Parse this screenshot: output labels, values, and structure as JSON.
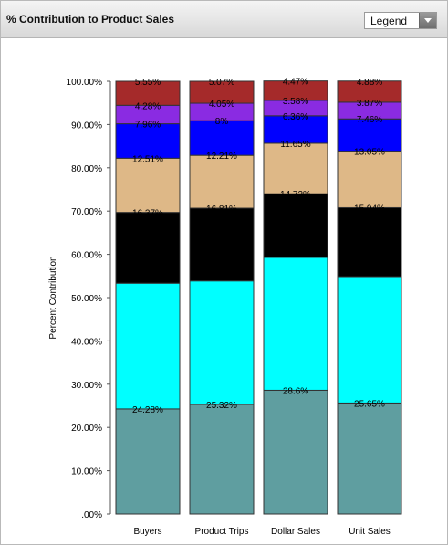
{
  "header": {
    "title": "% Contribution to Product Sales",
    "legend_label": "Legend"
  },
  "icons": {
    "legend_dropdown": "chevron-down-icon"
  },
  "chart_data": {
    "type": "bar",
    "stacked": true,
    "title": "% Contribution to Product Sales",
    "ylabel": "Percent Contribution",
    "xlabel": "",
    "ylim": [
      0,
      100
    ],
    "yticks": [
      ".00%",
      "10.00%",
      "20.00%",
      "30.00%",
      "40.00%",
      "50.00%",
      "60.00%",
      "70.00%",
      "80.00%",
      "90.00%",
      "100.00%"
    ],
    "categories": [
      "Buyers",
      "Product Trips",
      "Dollar Sales",
      "Unit Sales"
    ],
    "series": [
      {
        "color": "#5f9ea0",
        "values": [
          24.28,
          25.32,
          28.6,
          25.65
        ],
        "labels": [
          "24.28%",
          "25.32%",
          "28.6%",
          "25.65%"
        ]
      },
      {
        "color": "#00ffff",
        "values": [
          29.05,
          28.54,
          30.69,
          29.2
        ],
        "labels": [
          "",
          "",
          "",
          ""
        ]
      },
      {
        "color": "#000000",
        "values": [
          16.37,
          16.81,
          14.72,
          15.94
        ],
        "labels": [
          "16.37%",
          "16.81%",
          "14.72%",
          "15.94%"
        ]
      },
      {
        "color": "#deb887",
        "values": [
          12.51,
          12.21,
          11.65,
          13.05
        ],
        "labels": [
          "12.51%",
          "12.21%",
          "11.65%",
          "13.05%"
        ]
      },
      {
        "color": "#0000ff",
        "values": [
          7.96,
          8.0,
          6.36,
          7.46
        ],
        "labels": [
          "7.96%",
          "8%",
          "6.36%",
          "7.46%"
        ]
      },
      {
        "color": "#8a2be2",
        "values": [
          4.28,
          4.05,
          3.58,
          3.87
        ],
        "labels": [
          "4.28%",
          "4.05%",
          "3.58%",
          "3.87%"
        ]
      },
      {
        "color": "#a52a2a",
        "values": [
          5.55,
          5.07,
          4.47,
          4.88
        ],
        "labels": [
          "5.55%",
          "5.07%",
          "4.47%",
          "4.88%"
        ]
      }
    ],
    "grid": false,
    "legend": "dropdown"
  }
}
